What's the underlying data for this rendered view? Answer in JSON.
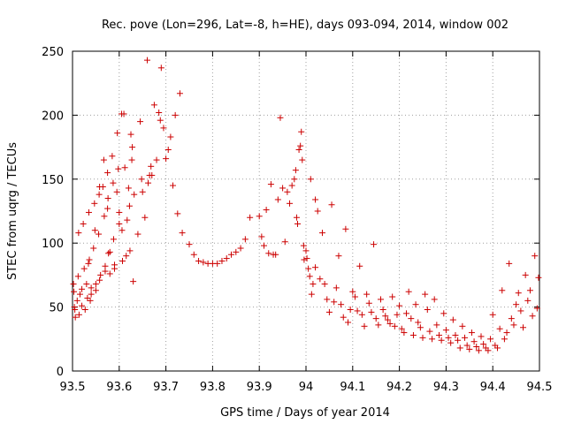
{
  "chart_data": {
    "type": "scatter",
    "title": "Rec. pove (Lon=296, Lat=-8, h=HE), days 093-094, 2014, window 002",
    "xlabel": "GPS time / Days of year 2014",
    "ylabel": "STEC from uqrg / TECUs",
    "xlim": [
      93.5,
      94.5
    ],
    "ylim": [
      0,
      250
    ],
    "xticks": [
      93.5,
      93.6,
      93.7,
      93.8,
      93.9,
      94,
      94.1,
      94.2,
      94.3,
      94.4,
      94.5
    ],
    "xtick_labels": [
      "93.5",
      "93.6",
      "93.7",
      "93.8",
      "93.9",
      "94",
      "94.1",
      "94.2",
      "94.3",
      "94.4",
      "94.5"
    ],
    "yticks": [
      0,
      50,
      100,
      150,
      200,
      250
    ],
    "ytick_labels": [
      "0",
      "50",
      "100",
      "150",
      "200",
      "250"
    ],
    "grid": true,
    "marker": "+",
    "color": "#cc0000",
    "series": [
      {
        "name": "STEC",
        "points": [
          [
            93.502,
            68
          ],
          [
            93.503,
            62
          ],
          [
            93.504,
            50
          ],
          [
            93.505,
            48
          ],
          [
            93.506,
            42
          ],
          [
            93.51,
            55
          ],
          [
            93.512,
            74
          ],
          [
            93.513,
            108
          ],
          [
            93.514,
            44
          ],
          [
            93.516,
            60
          ],
          [
            93.52,
            64
          ],
          [
            93.52,
            51
          ],
          [
            93.523,
            115
          ],
          [
            93.525,
            80
          ],
          [
            93.527,
            48
          ],
          [
            93.53,
            68
          ],
          [
            93.532,
            57
          ],
          [
            93.534,
            84
          ],
          [
            93.535,
            124
          ],
          [
            93.536,
            87
          ],
          [
            93.538,
            55
          ],
          [
            93.54,
            60
          ],
          [
            93.54,
            65
          ],
          [
            93.545,
            96
          ],
          [
            93.547,
            131
          ],
          [
            93.548,
            110
          ],
          [
            93.55,
            63
          ],
          [
            93.55,
            68
          ],
          [
            93.556,
            107
          ],
          [
            93.557,
            138
          ],
          [
            93.558,
            144
          ],
          [
            93.558,
            71
          ],
          [
            93.56,
            75
          ],
          [
            93.565,
            144
          ],
          [
            93.567,
            165
          ],
          [
            93.568,
            121
          ],
          [
            93.57,
            78
          ],
          [
            93.57,
            82
          ],
          [
            93.575,
            127
          ],
          [
            93.575,
            155
          ],
          [
            93.576,
            135
          ],
          [
            93.577,
            92
          ],
          [
            93.58,
            93
          ],
          [
            93.58,
            76
          ],
          [
            93.585,
            168
          ],
          [
            93.587,
            147
          ],
          [
            93.588,
            103
          ],
          [
            93.59,
            80
          ],
          [
            93.59,
            83
          ],
          [
            93.595,
            140
          ],
          [
            93.596,
            186
          ],
          [
            93.598,
            158
          ],
          [
            93.6,
            115
          ],
          [
            93.6,
            124
          ],
          [
            93.605,
            201
          ],
          [
            93.606,
            110
          ],
          [
            93.607,
            86
          ],
          [
            93.61,
            201
          ],
          [
            93.612,
            159
          ],
          [
            93.615,
            90
          ],
          [
            93.617,
            118
          ],
          [
            93.62,
            143
          ],
          [
            93.622,
            129
          ],
          [
            93.623,
            94
          ],
          [
            93.625,
            185
          ],
          [
            93.627,
            165
          ],
          [
            93.628,
            175
          ],
          [
            93.63,
            70
          ],
          [
            93.632,
            138
          ],
          [
            93.64,
            107
          ],
          [
            93.645,
            195
          ],
          [
            93.648,
            150
          ],
          [
            93.65,
            140
          ],
          [
            93.655,
            120
          ],
          [
            93.66,
            243
          ],
          [
            93.662,
            147
          ],
          [
            93.665,
            153
          ],
          [
            93.668,
            160
          ],
          [
            93.67,
            153
          ],
          [
            93.675,
            208
          ],
          [
            93.68,
            165
          ],
          [
            93.685,
            202
          ],
          [
            93.688,
            196
          ],
          [
            93.69,
            237
          ],
          [
            93.695,
            190
          ],
          [
            93.7,
            166
          ],
          [
            93.705,
            173
          ],
          [
            93.71,
            183
          ],
          [
            93.715,
            145
          ],
          [
            93.72,
            200
          ],
          [
            93.725,
            123
          ],
          [
            93.73,
            217
          ],
          [
            93.735,
            108
          ],
          [
            93.75,
            99
          ],
          [
            93.76,
            91
          ],
          [
            93.77,
            86
          ],
          [
            93.78,
            85
          ],
          [
            93.79,
            84
          ],
          [
            93.8,
            84
          ],
          [
            93.81,
            84
          ],
          [
            93.82,
            86
          ],
          [
            93.83,
            88
          ],
          [
            93.84,
            91
          ],
          [
            93.85,
            93
          ],
          [
            93.86,
            96
          ],
          [
            93.87,
            103
          ],
          [
            93.88,
            120
          ],
          [
            93.9,
            121
          ],
          [
            93.905,
            105
          ],
          [
            93.91,
            98
          ],
          [
            93.915,
            126
          ],
          [
            93.92,
            92
          ],
          [
            93.925,
            146
          ],
          [
            93.93,
            91
          ],
          [
            93.935,
            91
          ],
          [
            93.94,
            134
          ],
          [
            93.945,
            198
          ],
          [
            93.95,
            143
          ],
          [
            93.955,
            101
          ],
          [
            93.96,
            140
          ],
          [
            93.965,
            131
          ],
          [
            93.97,
            145
          ],
          [
            93.975,
            150
          ],
          [
            93.978,
            157
          ],
          [
            93.98,
            120
          ],
          [
            93.982,
            115
          ],
          [
            93.985,
            173
          ],
          [
            93.988,
            176
          ],
          [
            93.99,
            187
          ],
          [
            93.992,
            165
          ],
          [
            93.995,
            98
          ],
          [
            93.996,
            87
          ],
          [
            94.0,
            94
          ],
          [
            94.002,
            88
          ],
          [
            94.005,
            80
          ],
          [
            94.008,
            74
          ],
          [
            94.01,
            150
          ],
          [
            94.012,
            60
          ],
          [
            94.015,
            68
          ],
          [
            94.02,
            134
          ],
          [
            94.02,
            81
          ],
          [
            94.025,
            125
          ],
          [
            94.03,
            72
          ],
          [
            94.035,
            108
          ],
          [
            94.04,
            68
          ],
          [
            94.045,
            56
          ],
          [
            94.05,
            46
          ],
          [
            94.055,
            130
          ],
          [
            94.06,
            54
          ],
          [
            94.065,
            65
          ],
          [
            94.07,
            90
          ],
          [
            94.075,
            52
          ],
          [
            94.08,
            42
          ],
          [
            94.085,
            111
          ],
          [
            94.09,
            38
          ],
          [
            94.095,
            48
          ],
          [
            94.1,
            62
          ],
          [
            94.105,
            58
          ],
          [
            94.11,
            47
          ],
          [
            94.115,
            82
          ],
          [
            94.12,
            44
          ],
          [
            94.125,
            35
          ],
          [
            94.13,
            60
          ],
          [
            94.135,
            53
          ],
          [
            94.14,
            46
          ],
          [
            94.145,
            99
          ],
          [
            94.15,
            41
          ],
          [
            94.155,
            36
          ],
          [
            94.16,
            56
          ],
          [
            94.165,
            48
          ],
          [
            94.17,
            43
          ],
          [
            94.175,
            40
          ],
          [
            94.18,
            37
          ],
          [
            94.185,
            58
          ],
          [
            94.19,
            35
          ],
          [
            94.195,
            44
          ],
          [
            94.2,
            51
          ],
          [
            94.205,
            33
          ],
          [
            94.21,
            30
          ],
          [
            94.215,
            45
          ],
          [
            94.22,
            62
          ],
          [
            94.225,
            41
          ],
          [
            94.23,
            28
          ],
          [
            94.235,
            52
          ],
          [
            94.24,
            38
          ],
          [
            94.245,
            34
          ],
          [
            94.25,
            26
          ],
          [
            94.255,
            60
          ],
          [
            94.26,
            48
          ],
          [
            94.265,
            31
          ],
          [
            94.27,
            25
          ],
          [
            94.275,
            56
          ],
          [
            94.28,
            36
          ],
          [
            94.285,
            28
          ],
          [
            94.29,
            24
          ],
          [
            94.295,
            45
          ],
          [
            94.3,
            32
          ],
          [
            94.305,
            26
          ],
          [
            94.31,
            22
          ],
          [
            94.315,
            40
          ],
          [
            94.32,
            28
          ],
          [
            94.325,
            24
          ],
          [
            94.33,
            18
          ],
          [
            94.335,
            35
          ],
          [
            94.34,
            26
          ],
          [
            94.345,
            20
          ],
          [
            94.35,
            17
          ],
          [
            94.355,
            30
          ],
          [
            94.36,
            23
          ],
          [
            94.365,
            19
          ],
          [
            94.37,
            16
          ],
          [
            94.375,
            27
          ],
          [
            94.38,
            21
          ],
          [
            94.385,
            18
          ],
          [
            94.39,
            16
          ],
          [
            94.395,
            25
          ],
          [
            94.4,
            44
          ],
          [
            94.405,
            20
          ],
          [
            94.41,
            18
          ],
          [
            94.415,
            33
          ],
          [
            94.42,
            63
          ],
          [
            94.425,
            25
          ],
          [
            94.43,
            30
          ],
          [
            94.435,
            84
          ],
          [
            94.44,
            41
          ],
          [
            94.445,
            36
          ],
          [
            94.45,
            52
          ],
          [
            94.455,
            61
          ],
          [
            94.46,
            47
          ],
          [
            94.465,
            34
          ],
          [
            94.47,
            75
          ],
          [
            94.475,
            55
          ],
          [
            94.48,
            63
          ],
          [
            94.485,
            43
          ],
          [
            94.49,
            90
          ],
          [
            94.495,
            49
          ],
          [
            94.498,
            73
          ]
        ]
      }
    ]
  }
}
